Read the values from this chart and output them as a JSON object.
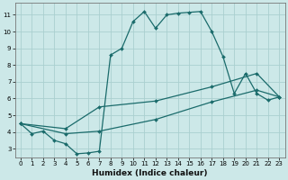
{
  "xlabel": "Humidex (Indice chaleur)",
  "xlim": [
    -0.5,
    23.5
  ],
  "ylim": [
    2.5,
    11.7
  ],
  "xticks": [
    0,
    1,
    2,
    3,
    4,
    5,
    6,
    7,
    8,
    9,
    10,
    11,
    12,
    13,
    14,
    15,
    16,
    17,
    18,
    19,
    20,
    21,
    22,
    23
  ],
  "yticks": [
    3,
    4,
    5,
    6,
    7,
    8,
    9,
    10,
    11
  ],
  "bg_color": "#cce8e8",
  "grid_color": "#aacfcf",
  "line_color": "#1a6b6b",
  "line1_x": [
    0,
    1,
    2,
    3,
    4,
    5,
    6,
    7,
    8,
    9,
    10,
    11,
    12,
    13,
    14,
    15,
    16,
    17,
    18,
    19,
    20,
    21,
    22,
    23
  ],
  "line1_y": [
    4.5,
    3.9,
    4.05,
    3.5,
    3.3,
    2.7,
    2.75,
    2.85,
    8.6,
    9.0,
    10.6,
    11.2,
    10.2,
    11.0,
    11.1,
    11.15,
    11.2,
    10.0,
    8.5,
    6.3,
    7.5,
    6.3,
    5.9,
    6.1
  ],
  "line2_x": [
    0,
    4,
    7,
    12,
    17,
    21,
    23
  ],
  "line2_y": [
    4.5,
    4.2,
    5.5,
    5.85,
    6.7,
    7.5,
    6.1
  ],
  "line3_x": [
    0,
    4,
    7,
    12,
    17,
    21,
    23
  ],
  "line3_y": [
    4.5,
    3.9,
    4.05,
    4.75,
    5.8,
    6.5,
    6.1
  ]
}
